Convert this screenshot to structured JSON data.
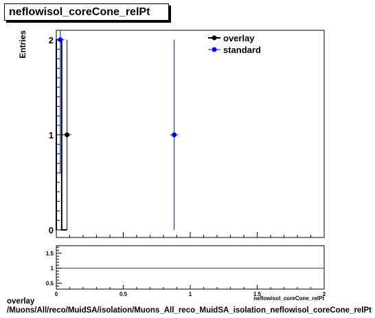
{
  "title": "neflowisol_coreCone_relPt",
  "footer": {
    "line1": "overlay",
    "line2": "/Muons/All/reco/MuidSA/isolation/Muons_All_reco_MuidSA_isolation_neflowisol_coreCone_relPt"
  },
  "chart_data": [
    {
      "type": "scatter",
      "title": "neflowisol_coreCone_relPt",
      "ylabel": "Entries",
      "xlabel": "neflowisol_coreCone_relPt",
      "xlim": [
        0,
        2
      ],
      "ylim": [
        -0.08,
        2.1
      ],
      "x_ticks": [
        "0",
        "0.5",
        "1",
        "1.5",
        "2"
      ],
      "y_ticks": [
        "0",
        "1",
        "2"
      ],
      "legend_position": "top-right",
      "series": [
        {
          "name": "overlay",
          "color": "#000000",
          "histogram": {
            "edges": [
              0,
              0.04,
              0.08
            ],
            "counts": [
              2,
              0
            ]
          },
          "points": [
            {
              "x": 0.08,
              "y": 1,
              "yerr": 1
            }
          ]
        },
        {
          "name": "standard",
          "color": "#0000ff",
          "points": [
            {
              "x": 0.03,
              "y": 2,
              "yerr": 1.41
            },
            {
              "x": 0.88,
              "y": 1,
              "yerr": 1
            }
          ]
        }
      ]
    },
    {
      "type": "line",
      "title": "",
      "xlim": [
        0,
        2
      ],
      "ylim": [
        0.3,
        1.75
      ],
      "x_ticks": [
        "0",
        "0.5",
        "1",
        "1.5",
        "2"
      ],
      "y_ticks": [
        "0.5",
        "1",
        "1.5"
      ],
      "reference_value": 1,
      "reference_color": "#cc0000"
    }
  ]
}
